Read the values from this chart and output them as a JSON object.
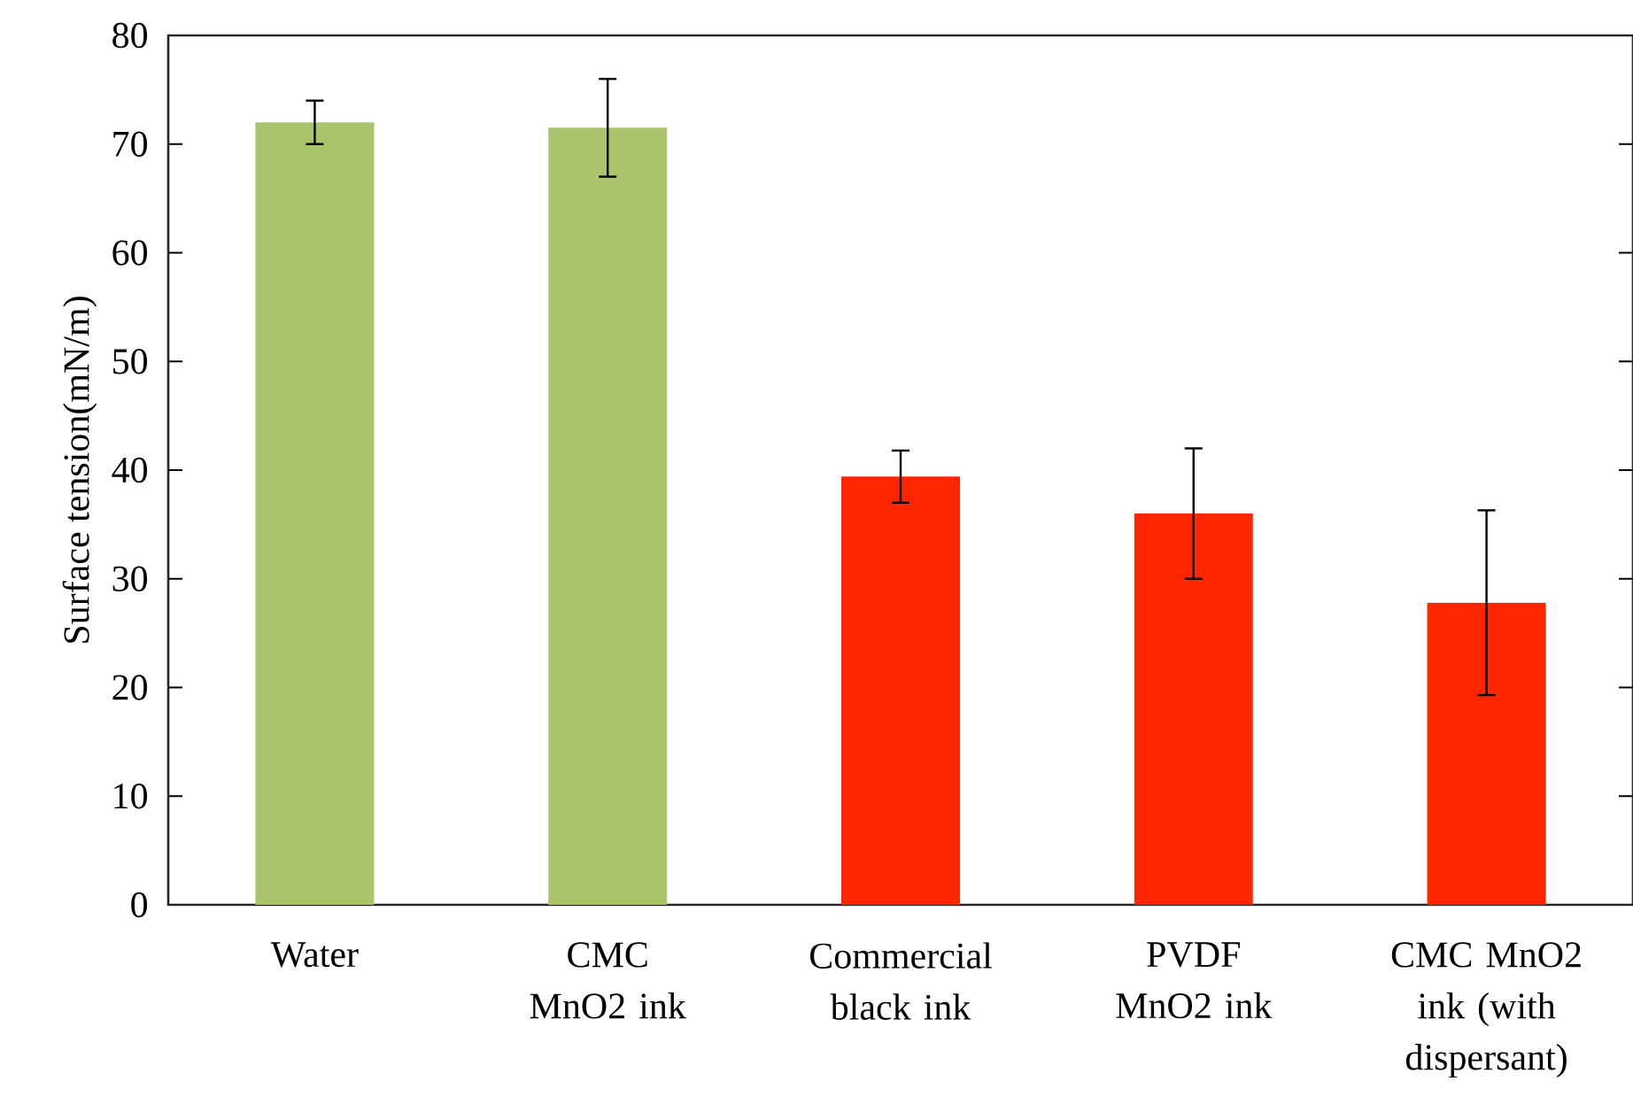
{
  "chart_data": {
    "type": "bar",
    "ylabel": "Surface tension(mN/m)",
    "categories": [
      "Water",
      "CMC MnO2 ink",
      "Commercial black ink",
      "PVDF MnO2 ink",
      "CMC MnO2 ink (with dispersant)"
    ],
    "values": [
      72,
      71.5,
      39.4,
      36,
      27.8
    ],
    "errors": [
      2,
      4.5,
      2.4,
      6,
      8.5
    ],
    "colors": [
      "#a9c46b",
      "#a9c46b",
      "#ff2600",
      "#ff2600",
      "#ff2600"
    ],
    "ylim": [
      0,
      80
    ],
    "yticks": [
      0,
      10,
      20,
      30,
      40,
      50,
      60,
      70,
      80
    ]
  }
}
